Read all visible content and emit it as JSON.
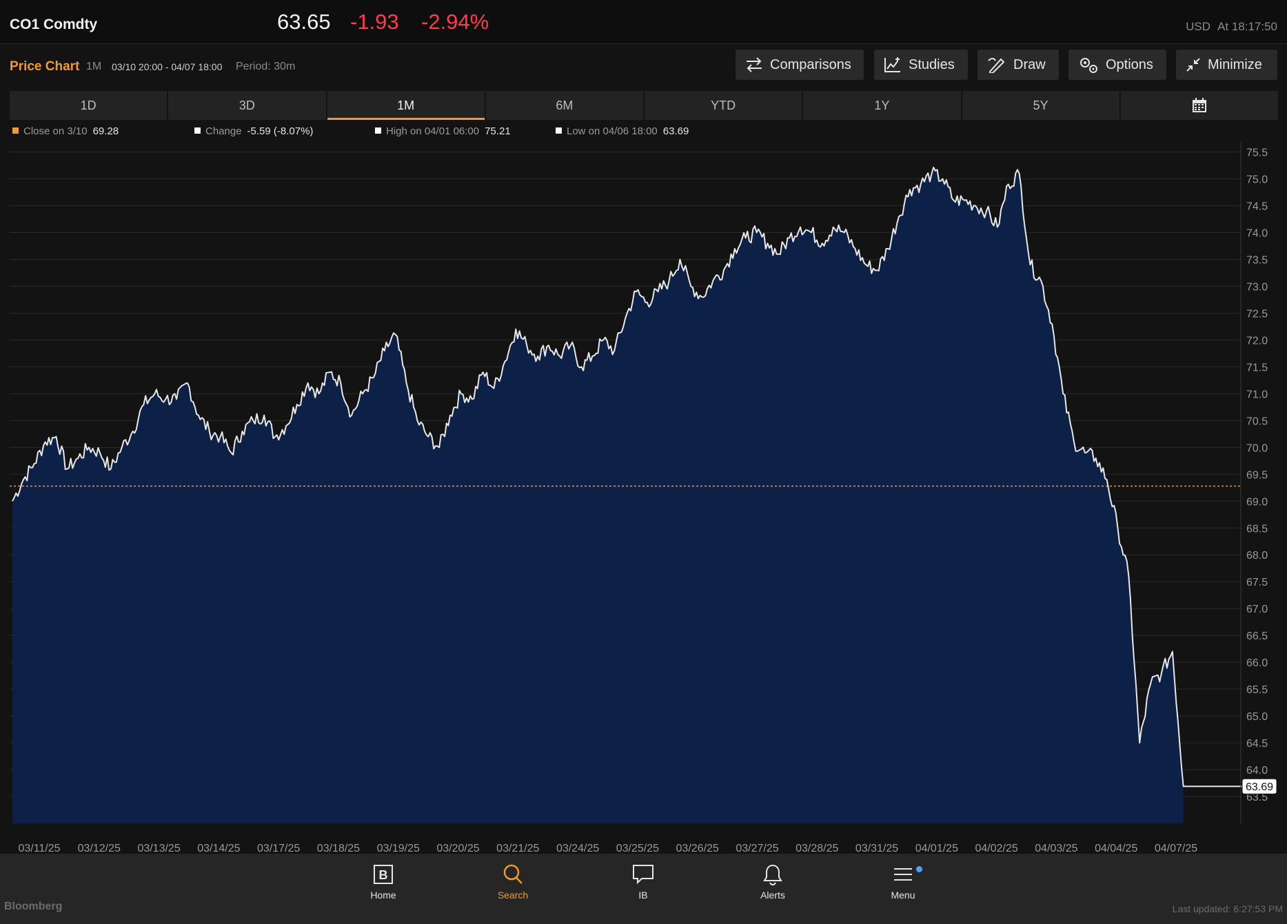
{
  "header": {
    "ticker": "CO1 Comdty",
    "price": "63.65",
    "change": "-1.93",
    "change_pct": "-2.94%",
    "currency": "USD",
    "as_of": "At 18:17:50"
  },
  "chart_header": {
    "title": "Price Chart",
    "range": "1M",
    "dates": "03/10 20:00 - 04/07 18:00",
    "period": "Period: 30m"
  },
  "toolbar": {
    "comparisons": "Comparisons",
    "studies": "Studies",
    "draw": "Draw",
    "options": "Options",
    "minimize": "Minimize"
  },
  "tabs": [
    "1D",
    "3D",
    "1M",
    "6M",
    "YTD",
    "1Y",
    "5Y"
  ],
  "active_tab": "1M",
  "legend": {
    "close_label": "Close on 3/10",
    "close_value": "69.28",
    "change_label": "Change",
    "change_value": "-5.59 (-8.07%)",
    "high_label": "High on 04/01 06:00",
    "high_value": "75.21",
    "low_label": "Low on 04/06 18:00",
    "low_value": "63.69"
  },
  "colors": {
    "accent": "#f39a2a",
    "negative": "#ff3b4e",
    "area_fill": "#0c2145",
    "line": "#e8e8e8",
    "background": "#131313"
  },
  "chart_data": {
    "type": "area",
    "reference_line": 69.28,
    "last_value_label": "63.69",
    "ylim": [
      63.0,
      75.7
    ],
    "y_ticks": [
      "75.5",
      "75.0",
      "74.5",
      "74.0",
      "73.5",
      "73.0",
      "72.5",
      "72.0",
      "71.5",
      "71.0",
      "70.5",
      "70.0",
      "69.5",
      "69.0",
      "68.5",
      "68.0",
      "67.5",
      "67.0",
      "66.5",
      "66.0",
      "65.5",
      "65.0",
      "64.5",
      "64.0",
      "63.5"
    ],
    "x_ticks": [
      "03/11/25",
      "03/12/25",
      "03/13/25",
      "03/14/25",
      "03/17/25",
      "03/18/25",
      "03/19/25",
      "03/20/25",
      "03/21/25",
      "03/24/25",
      "03/25/25",
      "03/26/25",
      "03/27/25",
      "03/28/25",
      "03/31/25",
      "04/01/25",
      "04/02/25",
      "04/03/25",
      "04/04/25",
      "04/07/25"
    ],
    "series": [
      {
        "values": [
          69.0,
          69.4,
          69.7,
          70.1,
          70.2,
          69.6,
          69.8,
          70.0,
          69.9,
          69.6,
          70.0,
          70.3,
          70.8,
          71.0,
          70.9,
          70.9,
          71.2,
          70.6,
          70.3,
          70.2,
          69.9,
          70.3,
          70.5,
          70.6,
          70.2,
          70.4,
          70.8,
          71.2,
          71.0,
          71.4,
          71.2,
          70.6,
          71.0,
          71.3,
          71.8,
          72.1,
          71.2,
          70.5,
          70.2,
          70.0,
          70.6,
          71.0,
          70.9,
          71.4,
          71.1,
          71.6,
          72.2,
          71.9,
          71.7,
          71.9,
          71.7,
          71.9,
          71.5,
          71.7,
          72.0,
          71.8,
          72.4,
          72.9,
          72.7,
          72.9,
          73.1,
          73.5,
          73.0,
          72.8,
          73.1,
          73.3,
          73.7,
          73.9,
          74.0,
          73.8,
          73.6,
          73.9,
          74.1,
          74.0,
          73.8,
          74.1,
          74.0,
          73.7,
          73.4,
          73.3,
          73.7,
          74.3,
          74.8,
          74.9,
          75.1,
          75.0,
          74.6,
          74.6,
          74.5,
          74.4,
          74.1,
          74.9,
          75.1,
          73.4,
          73.1,
          72.3,
          71.0,
          70.1,
          69.9,
          69.8,
          69.4,
          68.5,
          67.6,
          64.5,
          65.6,
          65.8,
          66.2,
          63.69,
          63.69,
          63.69,
          63.69,
          63.69,
          63.69,
          63.69
        ]
      }
    ]
  },
  "nav": {
    "home": "Home",
    "search": "Search",
    "ib": "IB",
    "alerts": "Alerts",
    "menu": "Menu"
  },
  "footer": {
    "brand": "Bloomberg",
    "updated": "Last updated: 6:27:53 PM"
  }
}
